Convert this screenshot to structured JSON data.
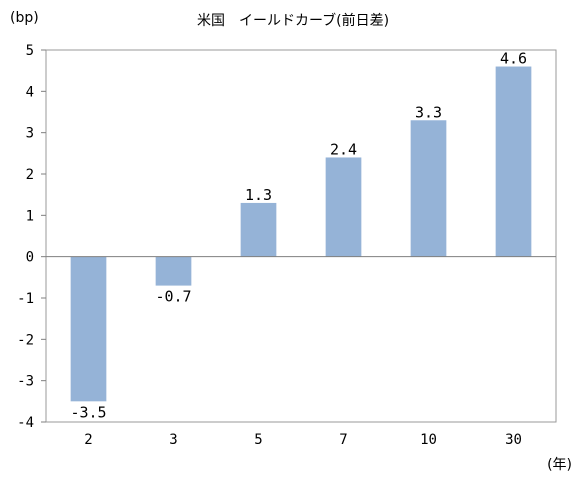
{
  "chart_data": {
    "type": "bar",
    "title": "米国　イールドカーブ(前日差)",
    "ylabel": "(bp)",
    "xlabel": "(年)",
    "categories": [
      "2",
      "3",
      "5",
      "7",
      "10",
      "30"
    ],
    "values": [
      -3.5,
      -0.7,
      1.3,
      2.4,
      3.3,
      4.6
    ],
    "data_labels": [
      "-3.5",
      "-0.7",
      "1.3",
      "2.4",
      "3.3",
      "4.6"
    ],
    "ylim": [
      -4,
      5
    ],
    "yticks": [
      "-4",
      "-3",
      "-2",
      "-1",
      "0",
      "1",
      "2",
      "3",
      "4",
      "5"
    ],
    "grid": false,
    "bar_color": "#95b3d7"
  }
}
